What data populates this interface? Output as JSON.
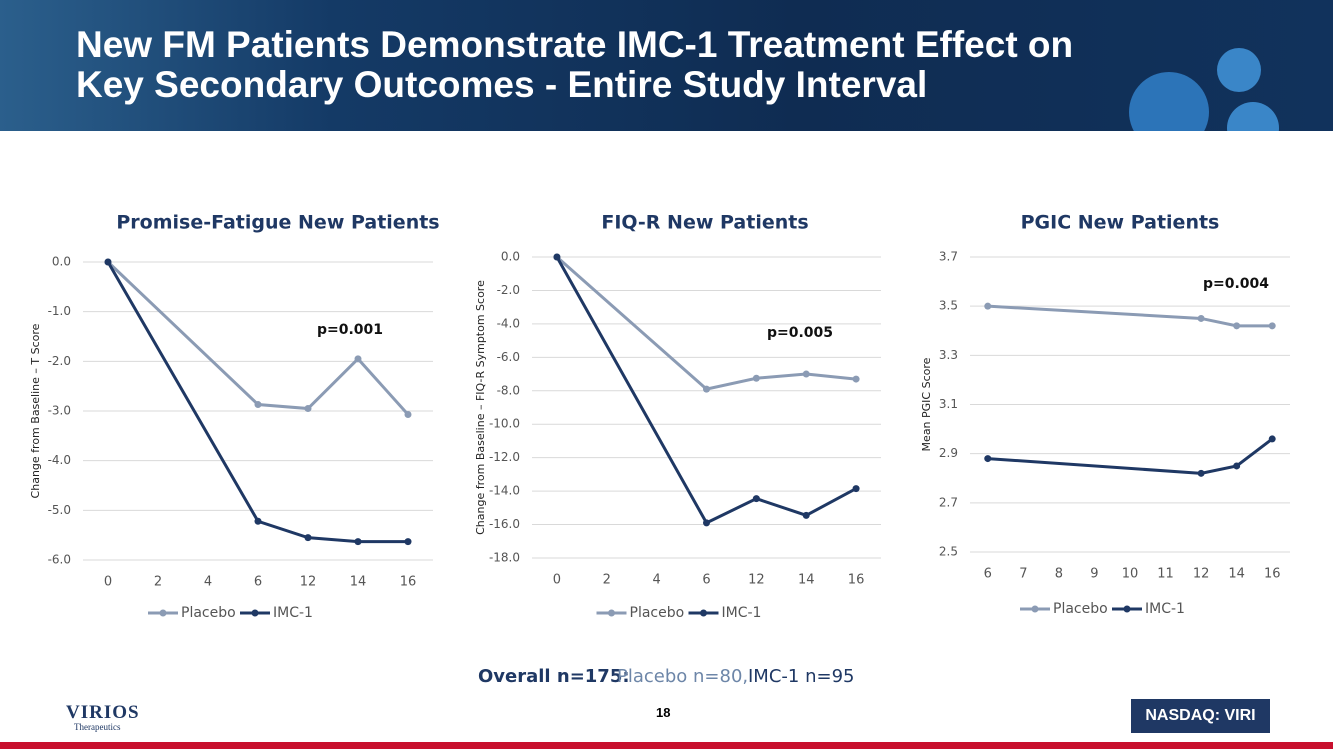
{
  "header": {
    "title_lines": [
      "New FM Patients Demonstrate IMC-1 Treatment Effect on",
      "Key Secondary Outcomes - Entire Study Interval"
    ]
  },
  "chart_data": [
    {
      "type": "line",
      "title": "Promise-Fatigue New Patients",
      "y_label": "Change from Baseline – T Score",
      "annotation": "p=0.001",
      "categories": [
        "0",
        "2",
        "4",
        "6",
        "12",
        "14",
        "16"
      ],
      "series": [
        {
          "name": "Placebo",
          "color": "#8b9bb4",
          "values": [
            0,
            null,
            null,
            -2.87,
            -2.95,
            -1.95,
            -3.07
          ]
        },
        {
          "name": "IMC-1",
          "color": "#1f3864",
          "values": [
            0,
            null,
            null,
            -5.22,
            -5.55,
            -5.63,
            -5.63
          ]
        }
      ],
      "ylim": [
        -6,
        0
      ],
      "yticks": [
        {
          "value": 0,
          "label": "0.0"
        },
        {
          "value": -1,
          "label": "-1.0"
        },
        {
          "value": -2,
          "label": "-2.0"
        },
        {
          "value": -3,
          "label": "-3.0"
        },
        {
          "value": -4,
          "label": "-4.0"
        },
        {
          "value": -5,
          "label": "-5.0"
        },
        {
          "value": -6,
          "label": "-6.0"
        }
      ],
      "grid": true,
      "span_gaps": true,
      "legend": "bottom"
    },
    {
      "type": "line",
      "title": "FIQ-R New Patients",
      "y_label": "Change from Baseline – FIQ-R Symptom Score",
      "annotation": "p=0.005",
      "categories": [
        "0",
        "2",
        "4",
        "6",
        "12",
        "14",
        "16"
      ],
      "series": [
        {
          "name": "Placebo",
          "color": "#8b9bb4",
          "values": [
            0,
            null,
            null,
            -7.9,
            -7.25,
            -7.0,
            -7.3
          ]
        },
        {
          "name": "IMC-1",
          "color": "#1f3864",
          "values": [
            0,
            null,
            null,
            -15.9,
            -14.45,
            -15.45,
            -13.85
          ]
        }
      ],
      "ylim": [
        -18,
        0
      ],
      "yticks": [
        {
          "value": 0,
          "label": "0.0"
        },
        {
          "value": -2,
          "label": "-2.0"
        },
        {
          "value": -4,
          "label": "-4.0"
        },
        {
          "value": -6,
          "label": "-6.0"
        },
        {
          "value": -8,
          "label": "-8.0"
        },
        {
          "value": -10,
          "label": "-10.0"
        },
        {
          "value": -12,
          "label": "-12.0"
        },
        {
          "value": -14,
          "label": "-14.0"
        },
        {
          "value": -16,
          "label": "-16.0"
        },
        {
          "value": -18,
          "label": "-18.0"
        }
      ],
      "grid": true,
      "span_gaps": true,
      "legend": "bottom"
    },
    {
      "type": "line",
      "title": "PGIC New Patients",
      "y_label": "Mean PGIC Score",
      "annotation": "p=0.004",
      "categories": [
        "6",
        "7",
        "8",
        "9",
        "10",
        "11",
        "12",
        "14",
        "16"
      ],
      "series": [
        {
          "name": "Placebo",
          "color": "#8b9bb4",
          "values": [
            3.5,
            null,
            null,
            null,
            null,
            null,
            3.45,
            3.42,
            3.42
          ]
        },
        {
          "name": "IMC-1",
          "color": "#1f3864",
          "values": [
            2.88,
            null,
            null,
            null,
            null,
            null,
            2.82,
            2.85,
            2.96
          ]
        }
      ],
      "ylim": [
        2.5,
        3.7
      ],
      "yticks": [
        2.5,
        2.7,
        2.9,
        3.1,
        3.3,
        3.5,
        3.7
      ],
      "grid": true,
      "span_gaps": true,
      "legend": "bottom"
    }
  ],
  "footer": {
    "overall": "Overall n=175:",
    "placebo": "Placebo n=80,",
    "imc": "IMC-1 n=95",
    "page": "18",
    "ticker": "NASDAQ: VIRI",
    "logo": "VIRIOS",
    "logo_sub": "Therapeutics"
  }
}
